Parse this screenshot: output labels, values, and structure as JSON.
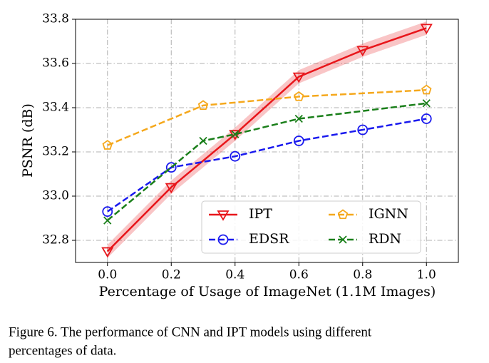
{
  "chart_data": {
    "type": "line",
    "xlabel": "Percentage of Usage of ImageNet (1.1M Images)",
    "ylabel": "PSNR (dB)",
    "caption": [
      "Figure 6. The performance of CNN and IPT models using different",
      "percentages of data."
    ],
    "xlim": [
      -0.1,
      1.1
    ],
    "ylim": [
      32.7,
      33.8
    ],
    "xticks": [
      {
        "value": 0,
        "label": "0.0"
      },
      0.2,
      0.4,
      0.6,
      0.8,
      {
        "value": 1,
        "label": "1.0"
      }
    ],
    "yticks": [
      32.8,
      {
        "value": 33,
        "label": "33.0"
      },
      33.2,
      33.4,
      33.6,
      33.8
    ],
    "grid": true,
    "legend": "lower right",
    "series": [
      {
        "name": "IPT",
        "color": "#e8161b",
        "marker": "triangle-down",
        "dash": "solid",
        "error": 0.03,
        "x": [
          0,
          0.2,
          0.4,
          0.6,
          0.8,
          1.0
        ],
        "values": [
          32.75,
          33.04,
          33.28,
          33.54,
          33.66,
          33.76
        ]
      },
      {
        "name": "EDSR",
        "color": "#1a1aee",
        "marker": "circle",
        "dash": "dashed",
        "x": [
          0,
          0.2,
          0.4,
          0.6,
          0.8,
          1.0
        ],
        "values": [
          32.93,
          33.13,
          33.18,
          33.25,
          33.3,
          33.35
        ]
      },
      {
        "name": "IGNN",
        "color": "#f5a81c",
        "marker": "pentagon",
        "dash": "dashed",
        "x": [
          0,
          0.3,
          0.6,
          1.0
        ],
        "values": [
          33.23,
          33.41,
          33.45,
          33.48
        ]
      },
      {
        "name": "RDN",
        "color": "#1a7f1a",
        "marker": "x",
        "dash": "dashed",
        "x": [
          0,
          0.3,
          0.4,
          0.6,
          1.0
        ],
        "values": [
          32.89,
          33.25,
          33.28,
          33.35,
          33.42
        ]
      }
    ]
  }
}
